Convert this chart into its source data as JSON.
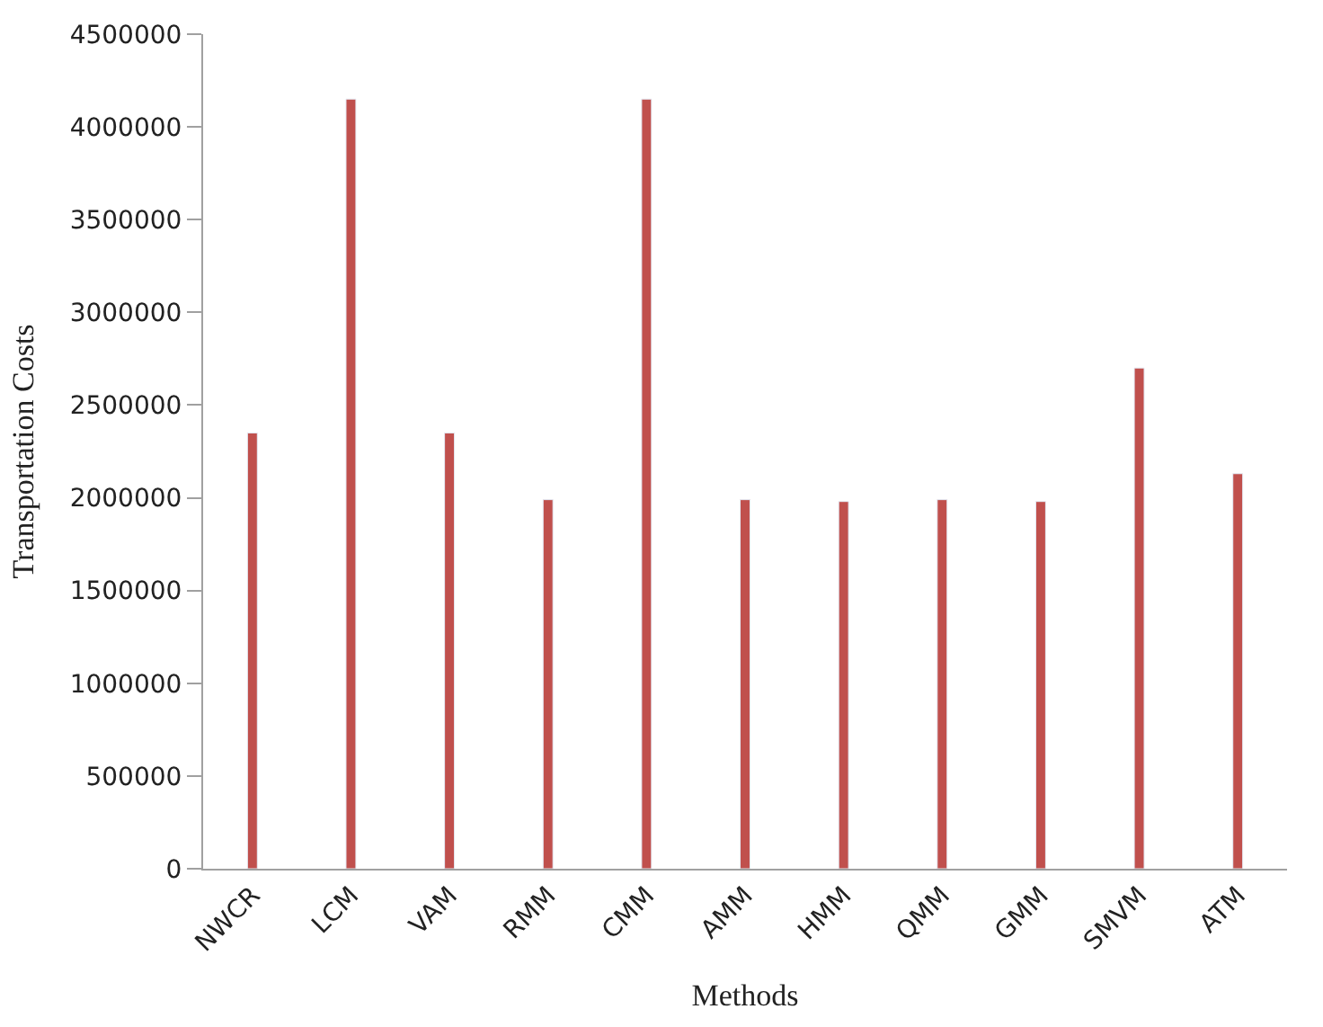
{
  "chart_data": {
    "type": "bar",
    "xlabel": "Methods",
    "ylabel": "Transportation Costs",
    "categories": [
      "NWCR",
      "LCM",
      "VAM",
      "RMM",
      "CMM",
      "AMM",
      "HMM",
      "QMM",
      "GMM",
      "SMVM",
      "ATM"
    ],
    "values": [
      2350000,
      4150000,
      2350000,
      1990000,
      4150000,
      1990000,
      1980000,
      1990000,
      1980000,
      2700000,
      2130000
    ],
    "color": "#c0504d",
    "ylim": [
      0,
      4500000
    ],
    "yticks": [
      0,
      500000,
      1000000,
      1500000,
      2000000,
      2500000,
      3000000,
      3500000,
      4000000,
      4500000
    ],
    "tick_labels": true
  }
}
